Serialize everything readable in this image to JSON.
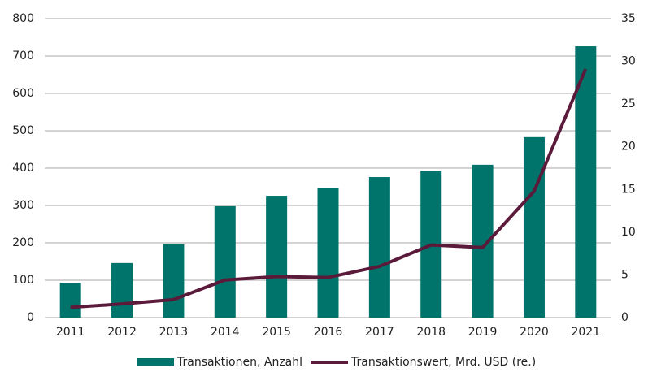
{
  "chart_data": {
    "type": "bar",
    "categories": [
      "2011",
      "2012",
      "2013",
      "2014",
      "2015",
      "2016",
      "2017",
      "2018",
      "2019",
      "2020",
      "2021"
    ],
    "series": [
      {
        "name": "Transaktionen, Anzahl",
        "type": "bar",
        "color": "#00736b",
        "values": [
          93,
          146,
          196,
          298,
          326,
          346,
          376,
          393,
          409,
          483,
          726
        ]
      },
      {
        "name": "Transaktionswert, Mrd. USD (re.)",
        "type": "line",
        "axis": "y2",
        "color": "#5c1a3a",
        "values": [
          1.2,
          1.6,
          2.1,
          4.4,
          4.8,
          4.7,
          6.0,
          8.5,
          8.2,
          14.8,
          29.1
        ]
      }
    ],
    "ylim": [
      0,
      800
    ],
    "yticks": [
      0,
      100,
      200,
      300,
      400,
      500,
      600,
      700,
      800
    ],
    "y2lim": [
      0,
      35
    ],
    "y2ticks": [
      0,
      5,
      10,
      15,
      20,
      25,
      30,
      35
    ],
    "grid": true,
    "legend": "bottom"
  }
}
